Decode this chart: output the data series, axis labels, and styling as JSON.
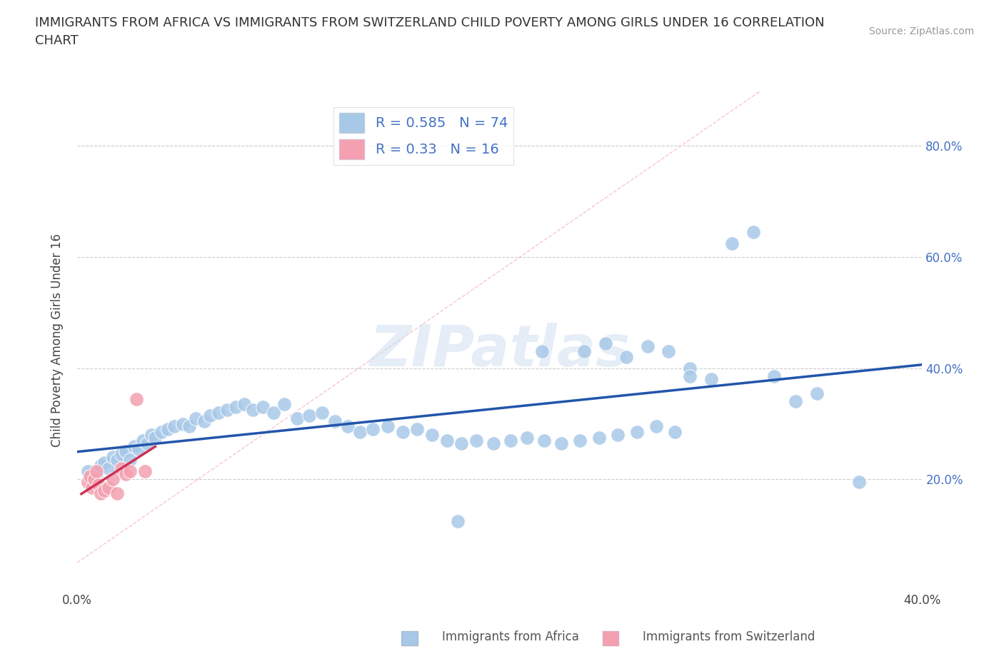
{
  "title": "IMMIGRANTS FROM AFRICA VS IMMIGRANTS FROM SWITZERLAND CHILD POVERTY AMONG GIRLS UNDER 16 CORRELATION\nCHART",
  "source_text": "Source: ZipAtlas.com",
  "ylabel": "Child Poverty Among Girls Under 16",
  "xlim": [
    0.0,
    0.4
  ],
  "ylim": [
    0.0,
    0.9
  ],
  "x_tick_positions": [
    0.0,
    0.05,
    0.1,
    0.15,
    0.2,
    0.25,
    0.3,
    0.35,
    0.4
  ],
  "x_tick_labels": [
    "0.0%",
    "",
    "",
    "",
    "",
    "",
    "",
    "",
    "40.0%"
  ],
  "y_tick_positions": [
    0.0,
    0.2,
    0.4,
    0.6,
    0.8
  ],
  "y_tick_labels_right": [
    "",
    "20.0%",
    "40.0%",
    "60.0%",
    "80.0%"
  ],
  "africa_color": "#a8c8e8",
  "swiss_color": "#f4a0b0",
  "africa_line_color": "#2255aa",
  "swiss_line_color": "#cc3355",
  "diag_line_color": "#f4a0b0",
  "r_africa": 0.585,
  "n_africa": 74,
  "r_swiss": 0.33,
  "n_swiss": 16,
  "watermark": "ZIPatlas",
  "africa_scatter_x": [
    0.005,
    0.007,
    0.009,
    0.011,
    0.013,
    0.015,
    0.017,
    0.019,
    0.021,
    0.023,
    0.025,
    0.027,
    0.029,
    0.031,
    0.033,
    0.035,
    0.037,
    0.04,
    0.043,
    0.046,
    0.05,
    0.053,
    0.056,
    0.06,
    0.063,
    0.067,
    0.071,
    0.075,
    0.079,
    0.083,
    0.088,
    0.093,
    0.098,
    0.104,
    0.11,
    0.116,
    0.122,
    0.128,
    0.134,
    0.14,
    0.147,
    0.154,
    0.161,
    0.168,
    0.175,
    0.182,
    0.189,
    0.197,
    0.205,
    0.213,
    0.221,
    0.229,
    0.238,
    0.247,
    0.256,
    0.265,
    0.274,
    0.283,
    0.22,
    0.24,
    0.25,
    0.26,
    0.27,
    0.28,
    0.29,
    0.3,
    0.31,
    0.32,
    0.33,
    0.34,
    0.35,
    0.29,
    0.37,
    0.18
  ],
  "africa_scatter_y": [
    0.215,
    0.195,
    0.21,
    0.225,
    0.23,
    0.22,
    0.24,
    0.235,
    0.245,
    0.25,
    0.235,
    0.26,
    0.255,
    0.27,
    0.265,
    0.28,
    0.275,
    0.285,
    0.29,
    0.295,
    0.3,
    0.295,
    0.31,
    0.305,
    0.315,
    0.32,
    0.325,
    0.33,
    0.335,
    0.325,
    0.33,
    0.32,
    0.335,
    0.31,
    0.315,
    0.32,
    0.305,
    0.295,
    0.285,
    0.29,
    0.295,
    0.285,
    0.29,
    0.28,
    0.27,
    0.265,
    0.27,
    0.265,
    0.27,
    0.275,
    0.27,
    0.265,
    0.27,
    0.275,
    0.28,
    0.285,
    0.295,
    0.285,
    0.43,
    0.43,
    0.445,
    0.42,
    0.44,
    0.43,
    0.4,
    0.38,
    0.625,
    0.645,
    0.385,
    0.34,
    0.355,
    0.385,
    0.195,
    0.125
  ],
  "swiss_scatter_x": [
    0.005,
    0.006,
    0.007,
    0.008,
    0.009,
    0.01,
    0.011,
    0.013,
    0.015,
    0.017,
    0.019,
    0.021,
    0.023,
    0.025,
    0.028,
    0.032
  ],
  "swiss_scatter_y": [
    0.195,
    0.205,
    0.185,
    0.2,
    0.215,
    0.19,
    0.175,
    0.18,
    0.185,
    0.2,
    0.175,
    0.22,
    0.21,
    0.215,
    0.345,
    0.215
  ]
}
